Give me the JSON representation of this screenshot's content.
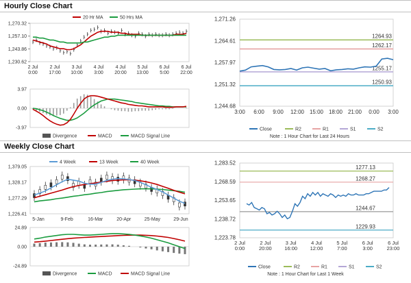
{
  "sections": {
    "hourly_title": "Hourly Close Chart",
    "weekly_title": "Weekly Close Chart"
  },
  "colors": {
    "ma20": "#c00000",
    "ma50": "#1a9c3f",
    "price": "#333333",
    "close_line": "#2e75b6",
    "r2": "#9bbb59",
    "r1": "#e7a3a3",
    "s1": "#b4a7d6",
    "s2": "#4bacc6",
    "divergence": "#9a9a9a",
    "ma4": "#5b9bd5"
  },
  "chart_data": [
    {
      "id": "hourly-price",
      "type": "line",
      "legend": [
        "20 Hr MA",
        "50 Hrs MA"
      ],
      "yticks": [
        "1,270.32",
        "1,257.10",
        "1,243.86",
        "1,230.62"
      ],
      "ylim": [
        1230.62,
        1270.32
      ],
      "xticks": [
        "2 Jul\n0:00",
        "2 Jul\n17:00",
        "3 Jul\n10:00",
        "4 Jul\n3:00",
        "4 Jul\n20:00",
        "5 Jul\n13:00",
        "6 Jul\n5:00",
        "6 Jul\n22:00"
      ],
      "series": [
        {
          "name": "Price",
          "values": [
            1251,
            1253,
            1250,
            1249,
            1247,
            1246,
            1244,
            1245,
            1242,
            1240,
            1241,
            1239,
            1243,
            1248,
            1252,
            1256,
            1259,
            1263,
            1264,
            1266,
            1262,
            1263,
            1260,
            1262,
            1261,
            1260,
            1263,
            1259,
            1260,
            1258,
            1257,
            1260,
            1259,
            1257,
            1259,
            1258,
            1259,
            1258,
            1258,
            1259,
            1258,
            1259,
            1260,
            1261,
            1260,
            1262
          ]
        },
        {
          "name": "20 Hr MA",
          "values": [
            1253,
            1252,
            1251,
            1250,
            1249,
            1247,
            1246,
            1245,
            1244,
            1244,
            1243,
            1243,
            1244,
            1246,
            1248,
            1251,
            1254,
            1257,
            1259,
            1261,
            1262,
            1262,
            1262,
            1261,
            1261,
            1261,
            1260,
            1260,
            1259,
            1259,
            1259,
            1259,
            1258,
            1258,
            1258,
            1258,
            1258,
            1258,
            1258,
            1258,
            1258,
            1258,
            1259,
            1259,
            1259,
            1260
          ]
        },
        {
          "name": "50 Hrs MA",
          "values": [
            1256,
            1256,
            1255,
            1255,
            1254,
            1253,
            1253,
            1252,
            1251,
            1251,
            1250,
            1250,
            1250,
            1250,
            1250,
            1251,
            1251,
            1252,
            1253,
            1254,
            1255,
            1256,
            1256,
            1257,
            1257,
            1258,
            1258,
            1258,
            1258,
            1258,
            1258,
            1258,
            1258,
            1258,
            1258,
            1258,
            1258,
            1258,
            1258,
            1258,
            1258,
            1258,
            1258,
            1258,
            1258,
            1258
          ]
        }
      ]
    },
    {
      "id": "hourly-macd",
      "type": "bar",
      "legend": [
        "Divergence",
        "MACD",
        "MACD Signal Line"
      ],
      "yticks": [
        "3.97",
        "0.00",
        "-3.97"
      ],
      "ylim": [
        -3.97,
        3.97
      ],
      "series": [
        {
          "name": "MACD",
          "values": [
            -0.2,
            -0.6,
            -1.0,
            -1.5,
            -2.1,
            -2.6,
            -3.0,
            -3.3,
            -3.5,
            -3.4,
            -3.0,
            -2.3,
            -1.2,
            0.0,
            1.0,
            1.9,
            2.4,
            2.6,
            2.6,
            2.5,
            2.3,
            2.1,
            1.9,
            1.7,
            1.5,
            1.3,
            1.1,
            1.0,
            0.8,
            0.7,
            0.6,
            0.5,
            0.5,
            0.4,
            0.3,
            0.3,
            0.3,
            0.3,
            0.3,
            0.2,
            0.2,
            0.2,
            0.3,
            0.3,
            0.3,
            0.4
          ]
        },
        {
          "name": "MACD Signal Line",
          "values": [
            0.0,
            -0.1,
            -0.3,
            -0.5,
            -0.8,
            -1.1,
            -1.5,
            -1.8,
            -2.1,
            -2.3,
            -2.5,
            -2.5,
            -2.3,
            -2.0,
            -1.5,
            -1.0,
            -0.4,
            0.2,
            0.7,
            1.1,
            1.5,
            1.7,
            1.9,
            1.9,
            1.9,
            1.8,
            1.7,
            1.6,
            1.5,
            1.4,
            1.2,
            1.1,
            1.0,
            0.9,
            0.8,
            0.7,
            0.6,
            0.5,
            0.5,
            0.4,
            0.4,
            0.3,
            0.3,
            0.3,
            0.3,
            0.3
          ]
        }
      ]
    },
    {
      "id": "hourly-pivot",
      "type": "line",
      "yticks": [
        "1,271.26",
        "1,264.61",
        "1,257.97",
        "1,251.32",
        "1,244.68"
      ],
      "ylim": [
        1244.68,
        1271.26
      ],
      "xticks": [
        "3:00",
        "6:00",
        "9:00",
        "12:00",
        "15:00",
        "18:00",
        "21:00",
        "0:00",
        "3:00"
      ],
      "levels": {
        "R2": 1264.93,
        "R1": 1262.17,
        "S1": 1255.17,
        "S2": 1250.93
      },
      "level_labels": [
        "1264.93",
        "1262.17",
        "1255.17",
        "1250.93"
      ],
      "close": [
        1255.4,
        1255.7,
        1256.7,
        1256.9,
        1257.1,
        1256.7,
        1255.9,
        1255.8,
        1255.9,
        1256.2,
        1255.7,
        1256.4,
        1256.6,
        1256.3,
        1256.0,
        1256.2,
        1255.5,
        1255.8,
        1255.9,
        1256.1,
        1256.0,
        1256.4,
        1256.7,
        1256.6,
        1256.9,
        1259.1,
        1259.3,
        1258.9
      ],
      "legend": [
        "Close",
        "R2",
        "R1",
        "S1",
        "S2"
      ],
      "note": "Note : 1 Hour Chart for Last 24 Hours"
    },
    {
      "id": "weekly-price",
      "type": "line",
      "legend": [
        "4 Week",
        "13 Week",
        "40 Week"
      ],
      "yticks": [
        "1,379.05",
        "1,328.17",
        "1,277.29",
        "1,226.41"
      ],
      "ylim": [
        1226.41,
        1379.05
      ],
      "xticks": [
        "5-Jan",
        "9-Feb",
        "16-Mar",
        "20-Apr",
        "25-May",
        "29-Jun"
      ],
      "series": [
        {
          "name": "Price",
          "values": [
            1285,
            1298,
            1312,
            1320,
            1330,
            1345,
            1340,
            1318,
            1325,
            1315,
            1330,
            1322,
            1335,
            1345,
            1340,
            1338,
            1342,
            1335,
            1330,
            1322,
            1316,
            1305,
            1300,
            1292,
            1280,
            1272,
            1255,
            1258
          ]
        },
        {
          "name": "4 Week",
          "values": [
            1287,
            1293,
            1300,
            1310,
            1320,
            1330,
            1338,
            1335,
            1332,
            1325,
            1322,
            1322,
            1328,
            1334,
            1338,
            1340,
            1339,
            1337,
            1334,
            1328,
            1320,
            1312,
            1305,
            1297,
            1287,
            1277,
            1267,
            1260
          ]
        },
        {
          "name": "13 Week",
          "values": [
            1278,
            1283,
            1288,
            1293,
            1298,
            1303,
            1309,
            1314,
            1318,
            1321,
            1324,
            1326,
            1329,
            1331,
            1334,
            1335,
            1336,
            1336,
            1335,
            1333,
            1330,
            1326,
            1321,
            1315,
            1309,
            1302,
            1296,
            1291
          ]
        },
        {
          "name": "40 Week",
          "values": [
            1265,
            1268,
            1270,
            1272,
            1275,
            1277,
            1280,
            1283,
            1285,
            1288,
            1290,
            1293,
            1295,
            1298,
            1300,
            1302,
            1304,
            1305,
            1306,
            1307,
            1307,
            1307,
            1306,
            1305,
            1303,
            1301,
            1299,
            1296
          ]
        }
      ]
    },
    {
      "id": "weekly-macd",
      "type": "bar",
      "legend": [
        "Divergence",
        "MACD",
        "MACD Signal Line"
      ],
      "yticks": [
        "24.89",
        "0.00",
        "-24.89"
      ],
      "ylim": [
        -24.89,
        24.89
      ],
      "series": [
        {
          "name": "MACD",
          "values": [
            10,
            11,
            12.5,
            13.5,
            14.5,
            15.5,
            16,
            16,
            15.5,
            15,
            15,
            15.5,
            16,
            16.5,
            17,
            17,
            16.5,
            16,
            15,
            14,
            12.5,
            11,
            9,
            7,
            5,
            2.5,
            0,
            -2.5
          ]
        },
        {
          "name": "MACD Signal Line",
          "values": [
            6,
            6.5,
            7.2,
            8,
            8.8,
            9.6,
            10.4,
            11,
            11.6,
            12,
            12.4,
            12.8,
            13.2,
            13.6,
            14,
            14.4,
            14.7,
            14.9,
            15,
            15,
            14.8,
            14.4,
            13.8,
            13,
            12,
            10.6,
            9,
            7.2
          ]
        }
      ]
    },
    {
      "id": "weekly-pivot",
      "type": "line",
      "yticks": [
        "1,283.52",
        "1,268.59",
        "1,253.65",
        "1,238.72",
        "1,223.78"
      ],
      "ylim": [
        1223.78,
        1283.52
      ],
      "xticks": [
        "2 Jul\n0:00",
        "2 Jul\n20:00",
        "3 Jul\n16:00",
        "4 Jul\n12:00",
        "5 Jul\n7:00",
        "6 Jul\n3:00",
        "6 Jul\n23:00"
      ],
      "levels": {
        "R2": 1277.13,
        "R1": 1268.27,
        "S1": 1244.67,
        "S2": 1229.93
      },
      "level_labels": [
        "1277.13",
        "1268.27",
        "1244.67",
        "1229.93"
      ],
      "close": [
        1251,
        1250,
        1252,
        1248,
        1247,
        1246,
        1248,
        1247,
        1243,
        1244,
        1242,
        1243,
        1245,
        1243,
        1240,
        1242,
        1239,
        1240,
        1245,
        1251,
        1249,
        1252,
        1257,
        1255,
        1259,
        1257,
        1260,
        1258,
        1260,
        1257,
        1259,
        1258,
        1257,
        1259,
        1258,
        1256,
        1258,
        1257,
        1258,
        1257,
        1259,
        1258,
        1258,
        1259,
        1258,
        1258,
        1258,
        1259,
        1259,
        1260,
        1261,
        1261,
        1261,
        1261,
        1262,
        1262,
        1264
      ],
      "legend": [
        "Close",
        "R2",
        "R1",
        "S1",
        "S2"
      ],
      "note": "Note : 1 Hour Chart for Last 1 Week"
    }
  ]
}
